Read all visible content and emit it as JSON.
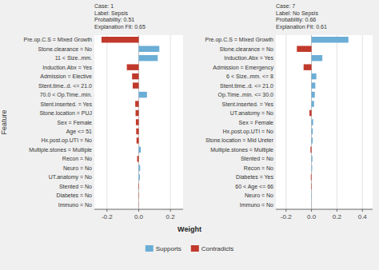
{
  "chart_data": [
    {
      "type": "bar",
      "orientation": "horizontal",
      "stacked": true,
      "grid": true,
      "legend": "bottom",
      "title": "Case: 1\nLabel: Sepsis\nProbability: 0.51\nExplanation Fit: 0.65",
      "x_label": "Weight",
      "y_label": "Feature",
      "categories": [
        "Pre.op.C.S = Mixed Growth",
        "Stone.clearance = No",
        "11 < Size..mm.",
        "Induction.Abx = Yes",
        "Admission = Elective",
        "Stent.time..d. <= 21.0",
        "70.0 < Op.Time..min.",
        "Stent.inserted. = Yes",
        "Stone.location = PUJ",
        "Sex = Female",
        "Age <= 51",
        "Hx.post.op.UTI = No",
        "Multiple.stones = Multiple",
        "Recon = No",
        "Neuro = No",
        "UT.anatomy = No",
        "Stented = No",
        "Diabetes = No",
        "Immuno = No"
      ],
      "series": [
        {
          "name": "Supports",
          "color": "#6baed6",
          "values": [
            null,
            0.13,
            0.12,
            null,
            null,
            null,
            0.052,
            null,
            null,
            null,
            null,
            null,
            0.013,
            null,
            0.009,
            0.007,
            null,
            null,
            null
          ]
        },
        {
          "name": "Contradicts",
          "color": "#c0392b",
          "values": [
            -0.235,
            null,
            null,
            -0.075,
            -0.042,
            -0.038,
            null,
            -0.022,
            -0.02,
            -0.018,
            -0.016,
            -0.014,
            null,
            -0.01,
            null,
            null,
            -0.003,
            -0.002,
            -0.001
          ]
        }
      ],
      "xlim": [
        -0.28,
        0.28
      ],
      "xticks": [
        -0.2,
        {
          "value": 0.0,
          "label": "0.0"
        },
        0.2
      ]
    },
    {
      "type": "bar",
      "orientation": "horizontal",
      "stacked": true,
      "grid": true,
      "title": "Case: 7\nLabel: No Sepsis\nProbability: 0.66\nExplanation Fit: 0.61",
      "categories": [
        "Pre.op.C.S = Mixed Growth",
        "Stone.clearance = No",
        "Induction.Abx = Yes",
        "Admission = Emergency",
        "6 < Size..mm. <= 8",
        "Stent.time..d. <= 21.0",
        "Op.Time..min. <= 30.0",
        "Stent.inserted. = Yes",
        "UT.anatomy = No",
        "Sex = Female",
        "Hx.post.op.UTI = No",
        "Stone.location = Mid Ureter",
        "Multiple.stones = Multiple",
        "Stented = No",
        "Recon = No",
        "Diabetes = Yes",
        "60 < Age <= 66",
        "Neuro = No",
        "Immuno = No"
      ],
      "series": [
        {
          "name": "Supports",
          "color": "#6baed6",
          "values": [
            0.29,
            null,
            0.085,
            null,
            0.038,
            0.03,
            0.026,
            0.02,
            null,
            0.013,
            0.01,
            0.009,
            null,
            0.007,
            0.005,
            null,
            null,
            0.002,
            0.001
          ]
        },
        {
          "name": "Contradicts",
          "color": "#c0392b",
          "values": [
            null,
            -0.115,
            null,
            -0.062,
            null,
            null,
            null,
            null,
            -0.016,
            null,
            null,
            null,
            -0.008,
            null,
            null,
            -0.005,
            -0.003,
            null,
            null
          ]
        }
      ],
      "xlim": [
        -0.28,
        0.48
      ],
      "xticks": [
        -0.2,
        {
          "value": 0.0,
          "label": "0.0"
        },
        0.2,
        0.4
      ]
    }
  ]
}
